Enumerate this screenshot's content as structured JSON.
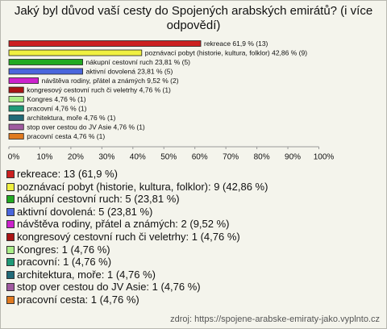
{
  "chart_data": {
    "type": "bar",
    "title": "Jaký byl důvod vaší cesty do Spojených arabských emirátů? (i více odpovědí)",
    "values": [
      61.9,
      42.86,
      23.81,
      23.81,
      9.52,
      4.76,
      4.76,
      4.76,
      4.76,
      4.76,
      4.76
    ],
    "value_labels": [
      "rekreace 61,9 % (13)",
      "poznávací pobyt (historie, kultura, folklor) 42,86 % (9)",
      "nákupní cestovní ruch 23,81 % (5)",
      "aktivní dovolená 23,81 % (5)",
      "návštěva rodiny, přátel a známých 9,52 % (2)",
      "kongresový cestovní ruch či veletrhy 4,76 % (1)",
      "Kongres 4,76 % (1)",
      "pracovní 4,76 % (1)",
      "architektura, moře 4,76 % (1)",
      "stop over cestou do JV Asie 4,76 % (1)",
      "pracovní cesta 4,76 % (1)"
    ],
    "legend_labels": [
      "rekreace: 13 (61,9 %)",
      "poznávací pobyt (historie, kultura, folklor): 9 (42,86 %)",
      "nákupní cestovní ruch: 5 (23,81 %)",
      "aktivní dovolená: 5 (23,81 %)",
      "návštěva rodiny, přátel a známých: 2 (9,52 %)",
      "kongresový cestovní ruch či veletrhy: 1 (4,76 %)",
      "Kongres: 1 (4,76 %)",
      "pracovní: 1 (4,76 %)",
      "architektura, moře: 1 (4,76 %)",
      "stop over cestou do JV Asie: 1 (4,76 %)",
      "pracovní cesta: 1 (4,76 %)"
    ],
    "colors": [
      "#cc2020",
      "#f0f040",
      "#22aa22",
      "#4a66dd",
      "#cc22cc",
      "#aa1414",
      "#aaee88",
      "#1f9a78",
      "#226a78",
      "#a05aa0",
      "#e07a20"
    ],
    "xlim": [
      0,
      100
    ],
    "xticks": [
      {
        "value": 0,
        "label": "0%"
      },
      {
        "value": 10,
        "label": "10%"
      },
      {
        "value": 20,
        "label": "20%"
      },
      {
        "value": 30,
        "label": "30%"
      },
      {
        "value": 40,
        "label": "40%"
      },
      {
        "value": 50,
        "label": "50%"
      },
      {
        "value": 60,
        "label": "60%"
      },
      {
        "value": 70,
        "label": "70%"
      },
      {
        "value": 80,
        "label": "80%"
      },
      {
        "value": 90,
        "label": "90%"
      },
      {
        "value": 100,
        "label": "100%"
      }
    ],
    "source": "zdroj: https://spojene-arabske-emiraty-jako.vyplnto.cz"
  }
}
